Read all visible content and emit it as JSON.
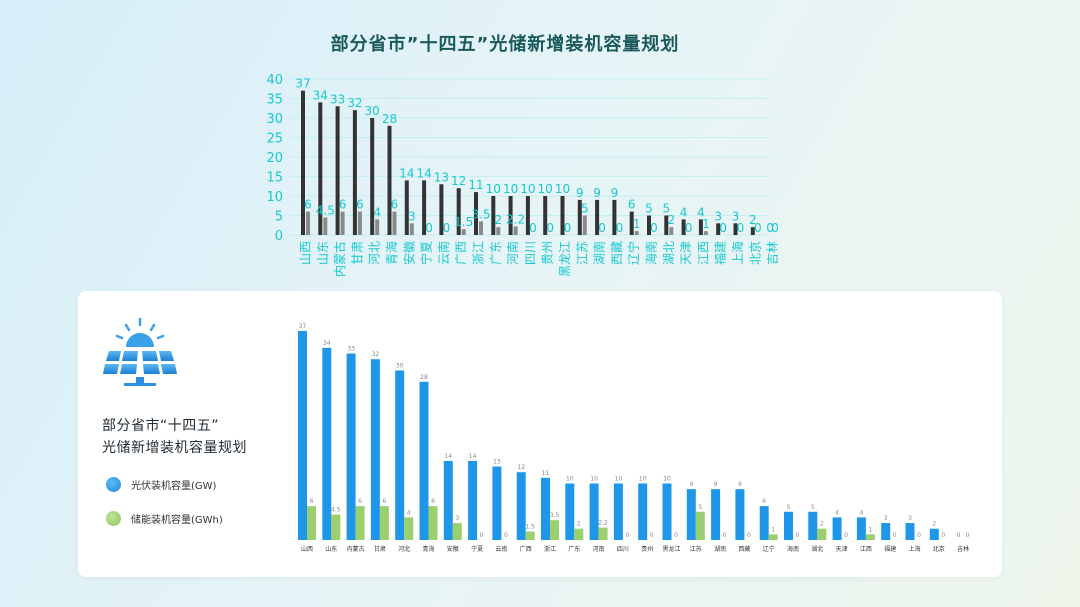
{
  "top": {
    "title": "部分省市”十四五”光储新增装机容量规划",
    "axis_color": "#17c9cf"
  },
  "card": {
    "title_line1": "部分省市“十四五”",
    "title_line2": "光储新增装机容量规划",
    "legend": [
      {
        "label": "光伏装机容量(GW)",
        "color": "#1e97e8"
      },
      {
        "label": "储能装机容量(GWh)",
        "color": "#9ccf6e"
      }
    ],
    "icon": "solar-panel-sun-icon"
  },
  "chart_data": [
    {
      "type": "bar",
      "title": "部分省市”十四五”光储新增装机容量规划",
      "categories": [
        "山西",
        "山东",
        "内蒙古",
        "甘肃",
        "河北",
        "青海",
        "安徽",
        "宁夏",
        "云南",
        "广西",
        "浙江",
        "广东",
        "河南",
        "四川",
        "贵州",
        "黑龙江",
        "江苏",
        "湖南",
        "西藏",
        "辽宁",
        "海南",
        "湖北",
        "天津",
        "江西",
        "福建",
        "上海",
        "北京",
        "吉林"
      ],
      "ylim": [
        0,
        40
      ],
      "yticks": [
        0,
        5,
        10,
        15,
        20,
        25,
        30,
        35,
        40
      ],
      "series": [
        {
          "values": [
            37,
            34,
            33,
            32,
            30,
            28,
            14,
            14,
            13,
            12,
            11,
            10,
            10,
            10,
            10,
            10,
            9,
            9,
            9,
            6,
            5,
            5,
            4,
            4,
            3,
            3,
            2,
            0
          ],
          "labels": [
            "37",
            "34",
            "33",
            "32",
            "30",
            "28",
            "14",
            "14",
            "13",
            "12",
            "11",
            "10",
            "10",
            "10",
            "10",
            "10",
            "9",
            "9",
            "9",
            "6",
            "5",
            "5",
            "4",
            "4",
            "3",
            "3",
            "2",
            "0"
          ],
          "color": "#333333"
        },
        {
          "values": [
            6,
            4.5,
            6,
            6,
            4,
            6,
            3,
            0,
            0,
            1.5,
            3.5,
            2,
            2.2,
            0,
            0,
            0,
            5,
            0,
            0,
            1,
            0,
            2,
            0,
            1,
            0,
            0,
            0,
            0
          ],
          "labels": [
            "6",
            "4.5",
            "6",
            "6",
            "4",
            "6",
            "3",
            "0",
            "0",
            "1.5",
            "3.5",
            "2",
            "2.2",
            "0",
            "0",
            "0",
            "5",
            "0",
            "0",
            "1",
            "0",
            "2",
            "0",
            "1",
            "0",
            "0",
            "0",
            "0"
          ],
          "color": "#8a8a8a"
        }
      ]
    },
    {
      "type": "bar",
      "title": "部分省市“十四五”光储新增装机容量规划",
      "categories": [
        "山西",
        "山东",
        "内蒙古",
        "甘肃",
        "河北",
        "青海",
        "安徽",
        "宁夏",
        "云南",
        "广西",
        "浙江",
        "广东",
        "河南",
        "四川",
        "贵州",
        "黑龙江",
        "江苏",
        "湖南",
        "西藏",
        "辽宁",
        "海南",
        "湖北",
        "天津",
        "江西",
        "福建",
        "上海",
        "北京",
        "吉林"
      ],
      "series": [
        {
          "name": "光伏装机容量(GW)",
          "values": [
            37,
            34,
            33,
            32,
            30,
            28,
            14,
            14,
            13,
            12,
            11,
            10,
            10,
            10,
            10,
            10,
            9,
            9,
            9,
            6,
            5,
            5,
            4,
            4,
            3,
            3,
            2,
            0
          ],
          "labels": [
            "37",
            "34",
            "33",
            "32",
            "30",
            "28",
            "14",
            "14",
            "13",
            "12",
            "11",
            "10",
            "10",
            "10",
            "10",
            "10",
            "9",
            "9",
            "9",
            "6",
            "5",
            "5",
            "4",
            "4",
            "3",
            "3",
            "2",
            "0"
          ],
          "color": "#1e97e8"
        },
        {
          "name": "储能装机容量(GWh)",
          "values": [
            6,
            4.5,
            6,
            6,
            4,
            6,
            3,
            0,
            0,
            1.5,
            3.5,
            2,
            2.2,
            0,
            0,
            0,
            5,
            0,
            0,
            1,
            0,
            2,
            0,
            1,
            0,
            0,
            0,
            0
          ],
          "labels": [
            "6",
            "4.5",
            "6",
            "6",
            "4",
            "6",
            "3",
            "0",
            "0",
            "1.5",
            "3.5",
            "2",
            "2.2",
            "0",
            "0",
            "0",
            "5",
            "0",
            "0",
            "1",
            "0",
            "2",
            "0",
            "1",
            "0",
            "0",
            "0",
            "0"
          ],
          "color": "#9ccf6e"
        }
      ]
    }
  ]
}
